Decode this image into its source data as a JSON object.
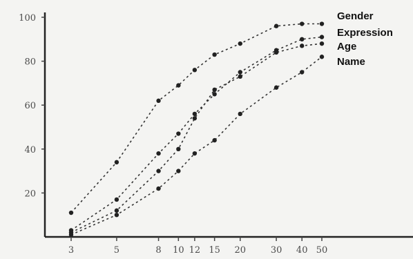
{
  "chart_data": {
    "type": "line",
    "title": "",
    "xlabel": "",
    "ylabel": "",
    "grid": false,
    "legend_position": "top-right",
    "x_scale": "log",
    "x": [
      3,
      5,
      8,
      10,
      12,
      15,
      20,
      30,
      40,
      50
    ],
    "x_ticks": [
      "3",
      "5",
      "8",
      "10",
      "12",
      "15",
      "20",
      "30",
      "40",
      "50"
    ],
    "y_ticks": [
      "20",
      "40",
      "60",
      "80",
      "100"
    ],
    "ylim": [
      0,
      100
    ],
    "series": [
      {
        "name": "Gender",
        "values": [
          11,
          34,
          62,
          69,
          76,
          83,
          88,
          96,
          97,
          97
        ]
      },
      {
        "name": "Expression",
        "values": [
          3,
          17,
          38,
          47,
          56,
          65,
          75,
          85,
          90,
          91
        ]
      },
      {
        "name": "Age",
        "values": [
          2,
          12,
          30,
          40,
          54,
          67,
          73,
          84,
          87,
          88
        ]
      },
      {
        "name": "Name",
        "values": [
          1,
          10,
          22,
          30,
          38,
          44,
          56,
          68,
          75,
          82
        ]
      }
    ]
  }
}
